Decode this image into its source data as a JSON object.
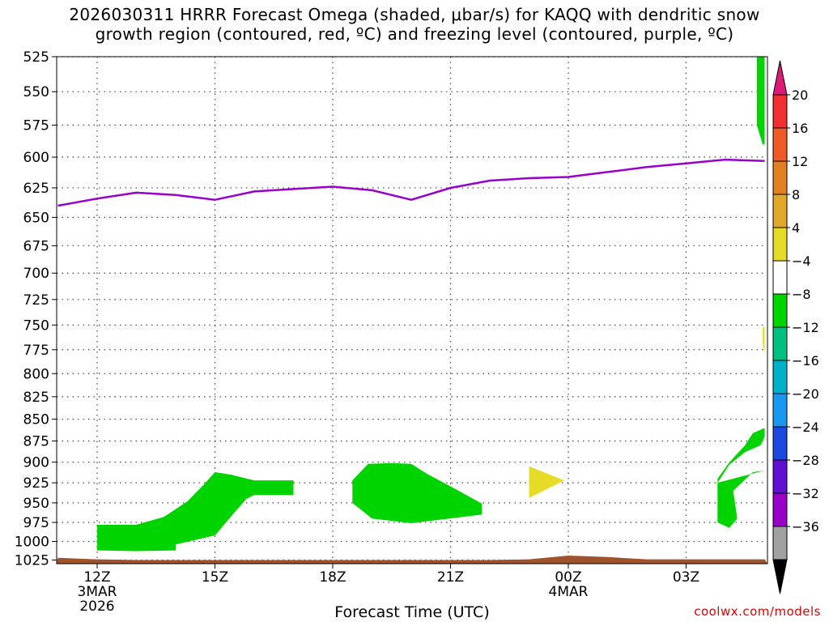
{
  "title": {
    "line1": "2026030311 HRRR Forecast Omega (shaded, μbar/s) for KAQQ with dendritic snow",
    "line2": "growth region (contoured, red, ºC) and freezing level (contoured, purple, ºC)"
  },
  "credit": "coolwx.com/models",
  "chart_data": {
    "type": "area",
    "title": "2026030311 HRRR Forecast Omega (shaded, μbar/s) for KAQQ with dendritic snow growth region (contoured, red, ºC) and freezing level (contoured, purple, ºC)",
    "xlabel": "Forecast Time (UTC)",
    "ylabel": "",
    "x_ticks": [
      {
        "hour": 0,
        "label": "12Z",
        "sub": [
          "3MAR",
          "2026"
        ]
      },
      {
        "hour": 3,
        "label": "15Z",
        "sub": []
      },
      {
        "hour": 6,
        "label": "18Z",
        "sub": []
      },
      {
        "hour": 9,
        "label": "21Z",
        "sub": []
      },
      {
        "hour": 12,
        "label": "00Z",
        "sub": [
          "4MAR"
        ]
      },
      {
        "hour": 15,
        "label": "03Z",
        "sub": []
      }
    ],
    "xlim": [
      -1,
      17
    ],
    "ylim": [
      1030,
      525
    ],
    "y_scale": "log",
    "y_ticks": [
      525,
      550,
      575,
      600,
      625,
      650,
      675,
      700,
      725,
      750,
      775,
      800,
      825,
      850,
      875,
      900,
      925,
      950,
      975,
      1000,
      1025
    ],
    "grid": true,
    "freezing_level": {
      "color": "#9900cc",
      "points": [
        [
          -1,
          640
        ],
        [
          0,
          634
        ],
        [
          1,
          629
        ],
        [
          2,
          631
        ],
        [
          3,
          635
        ],
        [
          4,
          628
        ],
        [
          5,
          626
        ],
        [
          6,
          624
        ],
        [
          7,
          627
        ],
        [
          8,
          635
        ],
        [
          9,
          625
        ],
        [
          10,
          619
        ],
        [
          11,
          617
        ],
        [
          12,
          616
        ],
        [
          13,
          612
        ],
        [
          14,
          608
        ],
        [
          15,
          605
        ],
        [
          16,
          602
        ],
        [
          17,
          603
        ]
      ]
    },
    "omega_regions": [
      {
        "value_range": [
          -8,
          -4
        ],
        "color": "#00d400",
        "points": [
          [
            0,
            978
          ],
          [
            1,
            978
          ],
          [
            1.7,
            968
          ],
          [
            2.3,
            948
          ],
          [
            2.7,
            928
          ],
          [
            3,
            912
          ],
          [
            3.4,
            915
          ],
          [
            4,
            922
          ],
          [
            5,
            922
          ],
          [
            5,
            940
          ],
          [
            4,
            940
          ],
          [
            3.8,
            945
          ],
          [
            3.5,
            962
          ],
          [
            3,
            992
          ],
          [
            2,
            1004
          ],
          [
            2,
            1012
          ],
          [
            1,
            1013
          ],
          [
            0,
            1012
          ]
        ]
      },
      {
        "value_range": [
          -8,
          -4
        ],
        "color": "#00d400",
        "points": [
          [
            6.5,
            922
          ],
          [
            6.9,
            902
          ],
          [
            7.5,
            901
          ],
          [
            8,
            902
          ],
          [
            8.4,
            914
          ],
          [
            9.1,
            932
          ],
          [
            9.8,
            951
          ],
          [
            9.8,
            965
          ],
          [
            8,
            976
          ],
          [
            7,
            970
          ],
          [
            6.5,
            950
          ]
        ]
      },
      {
        "value_range": [
          4,
          8
        ],
        "color": "#e6dc28",
        "points": [
          [
            11,
            905
          ],
          [
            11.9,
            922
          ],
          [
            11,
            944
          ]
        ]
      },
      {
        "value_range": [
          -8,
          -4
        ],
        "color": "#00d400",
        "points": [
          [
            15.8,
            925
          ],
          [
            16.1,
            903
          ],
          [
            16.5,
            888
          ],
          [
            16.9,
            880
          ],
          [
            17,
            870
          ],
          [
            17,
            860
          ],
          [
            16.7,
            866
          ],
          [
            16.5,
            880
          ],
          [
            16.1,
            900
          ],
          [
            15.8,
            920
          ],
          [
            15.8,
            975
          ],
          [
            16.1,
            982
          ],
          [
            16.3,
            970
          ],
          [
            16.2,
            935
          ],
          [
            16.7,
            912
          ],
          [
            17,
            910
          ]
        ]
      },
      {
        "value_range": [
          -8,
          -4
        ],
        "color": "#00d400",
        "points": [
          [
            16.7,
            525
          ],
          [
            16.8,
            525
          ],
          [
            16.8,
            575
          ],
          [
            16.95,
            590
          ],
          [
            17,
            590
          ],
          [
            17,
            525
          ],
          [
            16.8,
            525
          ]
        ]
      },
      {
        "value_range": [
          4,
          8
        ],
        "color": "#e6dc28",
        "points": [
          [
            16.95,
            752
          ],
          [
            17,
            752
          ],
          [
            17,
            780
          ],
          [
            16.95,
            768
          ]
        ]
      }
    ],
    "terrain": {
      "color": "#a0522d",
      "points": [
        [
          -1,
          1022
        ],
        [
          0,
          1024
        ],
        [
          1,
          1025
        ],
        [
          10,
          1025
        ],
        [
          11,
          1024
        ],
        [
          12,
          1019
        ],
        [
          13,
          1021
        ],
        [
          14,
          1024
        ],
        [
          17,
          1024
        ]
      ]
    },
    "colorbar": {
      "labels": [
        "20",
        "16",
        "12",
        "8",
        "4",
        "−4",
        "−8",
        "−12",
        "−16",
        "−20",
        "−24",
        "−28",
        "−32",
        "−36"
      ],
      "colors": [
        "#f03030",
        "#f05a28",
        "#e08020",
        "#e0a828",
        "#e6dc28",
        "#ffffff",
        "#00d400",
        "#00c080",
        "#00b0c8",
        "#1898f0",
        "#1c48e0",
        "#6010d0",
        "#9800c8",
        "#a0a0a0"
      ],
      "top_color": "#e01878",
      "bottom_color": "#000000"
    }
  }
}
